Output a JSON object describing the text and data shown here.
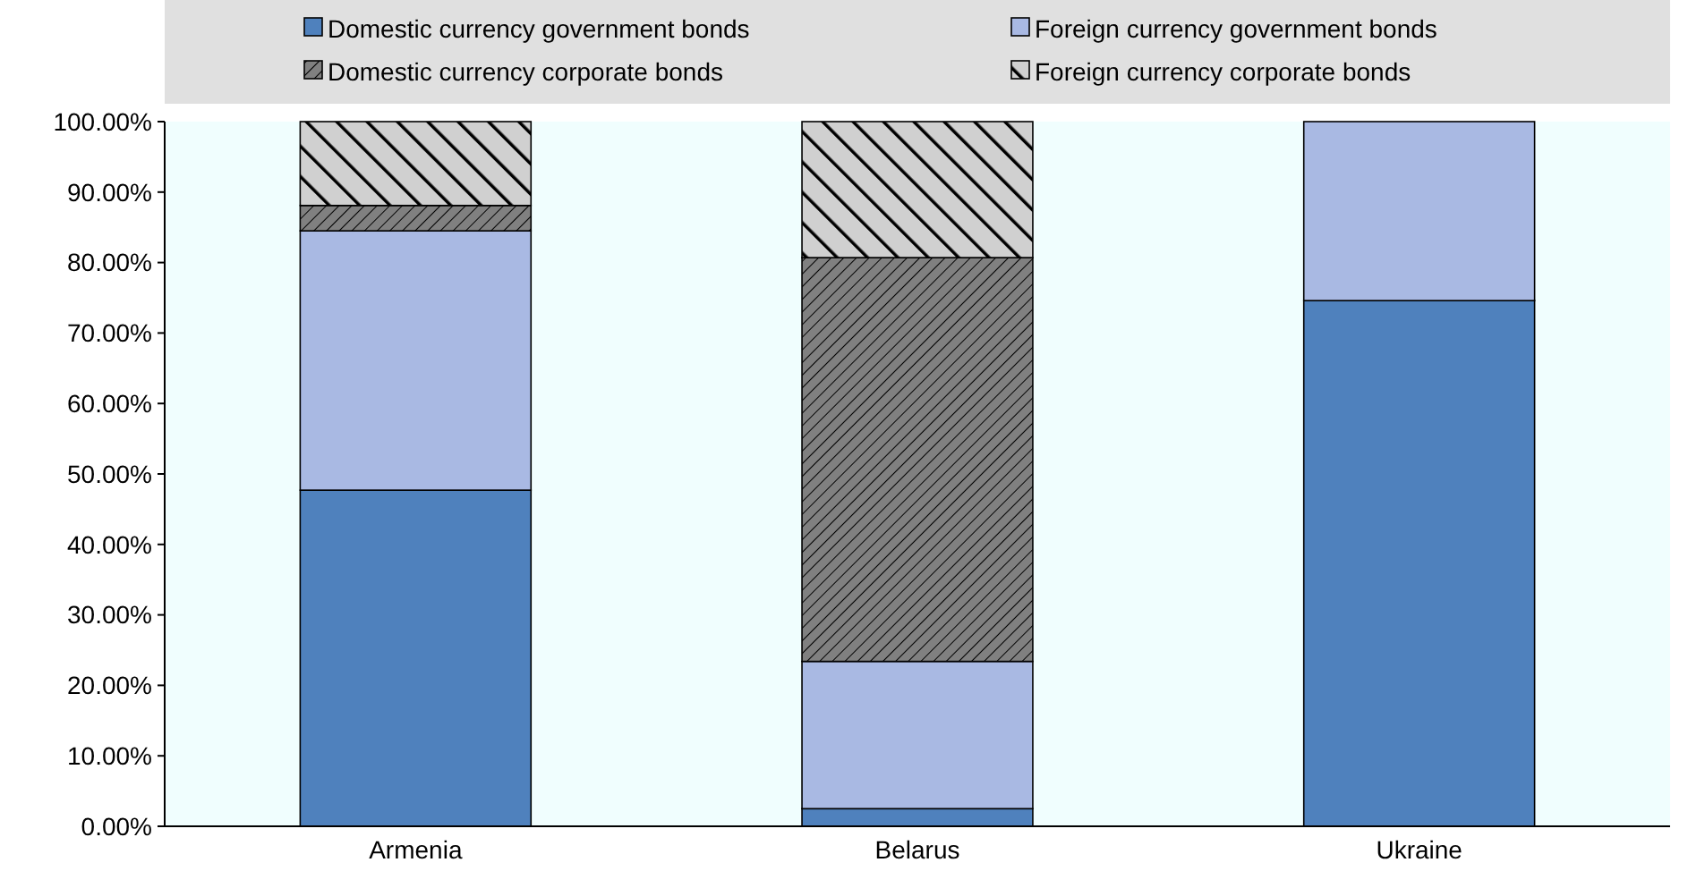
{
  "chart_data": {
    "type": "bar",
    "stacked": true,
    "categories": [
      "Armenia",
      "Belarus",
      "Ukraine"
    ],
    "series": [
      {
        "name": "Domestic currency government bonds",
        "color": "#4f81bd",
        "values": [
          47.7,
          2.5,
          74.6
        ]
      },
      {
        "name": "Foreign currency government bonds",
        "color": "#a9b9e3",
        "values": [
          36.8,
          20.9,
          25.4
        ]
      },
      {
        "name": "Domestic currency corporate bonds",
        "color": "#808080",
        "values": [
          3.6,
          57.3,
          0
        ]
      },
      {
        "name": "Foreign currency corporate bonds",
        "color": "#d0d0d0",
        "values": [
          11.9,
          19.3,
          0
        ]
      }
    ],
    "ylim": [
      0,
      100
    ],
    "yticks": [
      {
        "value": 0,
        "label": "0.00%"
      },
      {
        "value": 10,
        "label": "10.00%"
      },
      {
        "value": 20,
        "label": "20.00%"
      },
      {
        "value": 30,
        "label": "30.00%"
      },
      {
        "value": 40,
        "label": "40.00%"
      },
      {
        "value": 50,
        "label": "50.00%"
      },
      {
        "value": 60,
        "label": "60.00%"
      },
      {
        "value": 70,
        "label": "70.00%"
      },
      {
        "value": 80,
        "label": "80.00%"
      },
      {
        "value": 90,
        "label": "90.00%"
      },
      {
        "value": 100,
        "label": "100.00%"
      }
    ],
    "legend": "top",
    "grid": false
  }
}
